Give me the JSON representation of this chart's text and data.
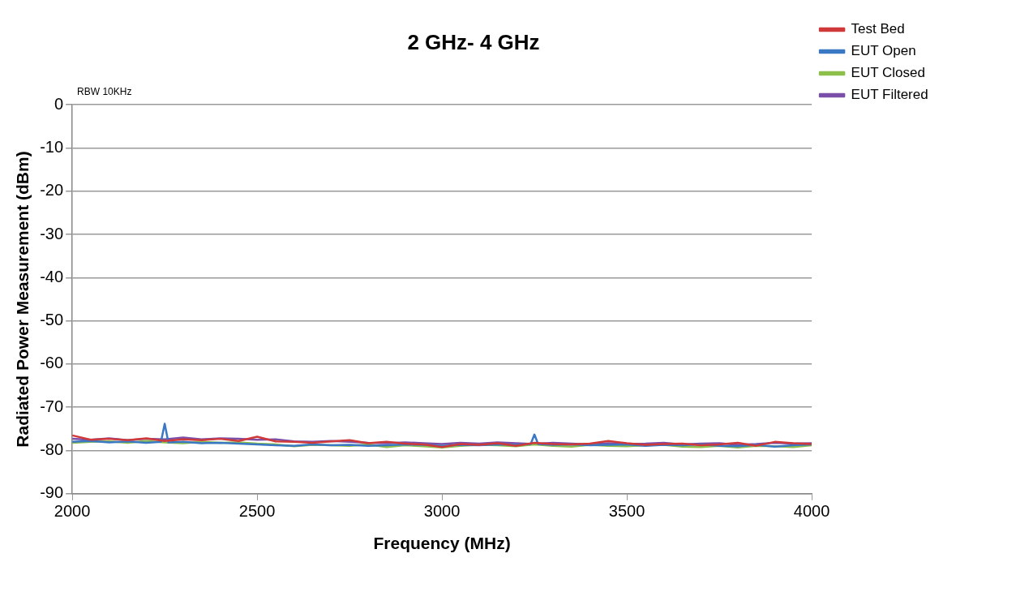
{
  "chart_data": {
    "type": "line",
    "title": "2 GHz- 4 GHz",
    "xlabel": "Frequency (MHz)",
    "ylabel": "Radiated Power Measurement (dBm)",
    "annotations": [
      "RBW 10KHz"
    ],
    "x": [
      2000,
      2050,
      2100,
      2150,
      2200,
      2250,
      2300,
      2350,
      2400,
      2450,
      2500,
      2550,
      2600,
      2650,
      2700,
      2750,
      2800,
      2850,
      2900,
      2950,
      3000,
      3050,
      3100,
      3150,
      3200,
      3250,
      3300,
      3350,
      3400,
      3450,
      3500,
      3550,
      3600,
      3650,
      3700,
      3750,
      3800,
      3850,
      3900,
      3950,
      4000
    ],
    "series": [
      {
        "name": "Test Bed",
        "color": "#d0393a",
        "values": [
          -76.5,
          -77.5,
          -77.3,
          -77.6,
          -77.2,
          -77.8,
          -77.4,
          -77.6,
          -77.3,
          -77.8,
          -76.8,
          -77.9,
          -78.0,
          -78.2,
          -77.9,
          -77.6,
          -78.3,
          -78.0,
          -78.4,
          -78.6,
          -79.2,
          -78.5,
          -78.7,
          -78.3,
          -78.9,
          -78.2,
          -78.5,
          -78.6,
          -78.4,
          -77.8,
          -78.3,
          -78.7,
          -78.5,
          -78.4,
          -78.8,
          -78.6,
          -78.2,
          -78.9,
          -78.0,
          -78.3,
          -78.5
        ]
      },
      {
        "name": "EUT Open",
        "color": "#3a78c3",
        "x": [
          2000,
          2050,
          2100,
          2150,
          2200,
          2240,
          2250,
          2260,
          2300,
          2350,
          2400,
          2450,
          2500,
          2550,
          2600,
          2650,
          2700,
          2750,
          2800,
          2850,
          2900,
          2950,
          3000,
          3050,
          3100,
          3150,
          3200,
          3240,
          3250,
          3260,
          3300,
          3350,
          3400,
          3450,
          3500,
          3550,
          3600,
          3650,
          3700,
          3750,
          3800,
          3850,
          3900,
          3950,
          4000
        ],
        "values": [
          -78.0,
          -77.8,
          -78.1,
          -77.9,
          -78.2,
          -78.0,
          -73.8,
          -78.1,
          -78.0,
          -78.3,
          -78.2,
          -78.4,
          -78.6,
          -78.8,
          -78.9,
          -78.6,
          -78.8,
          -78.7,
          -78.9,
          -78.8,
          -78.6,
          -78.7,
          -78.9,
          -78.7,
          -78.8,
          -78.6,
          -78.7,
          -78.5,
          -76.3,
          -78.5,
          -78.7,
          -78.6,
          -78.8,
          -78.7,
          -78.6,
          -78.9,
          -78.7,
          -78.8,
          -78.6,
          -78.9,
          -79.0,
          -78.7,
          -79.1,
          -78.8,
          -78.6
        ]
      },
      {
        "name": "EUT Closed",
        "color": "#8dc04a",
        "values": [
          -78.2,
          -78.0,
          -77.9,
          -78.2,
          -77.8,
          -78.1,
          -78.3,
          -78.0,
          -78.2,
          -78.1,
          -78.4,
          -78.6,
          -79.0,
          -78.7,
          -78.8,
          -78.9,
          -78.6,
          -79.2,
          -78.8,
          -79.0,
          -79.3,
          -78.9,
          -78.7,
          -78.8,
          -79.0,
          -78.6,
          -78.9,
          -79.1,
          -78.7,
          -78.9,
          -79.0,
          -78.8,
          -78.7,
          -79.1,
          -79.2,
          -78.9,
          -79.3,
          -78.9,
          -79.0,
          -79.2,
          -78.8
        ]
      },
      {
        "name": "EUT Filtered",
        "color": "#7b4fa8",
        "values": [
          -77.3,
          -77.5,
          -77.2,
          -77.6,
          -77.3,
          -77.4,
          -77.0,
          -77.4,
          -77.2,
          -77.3,
          -77.5,
          -77.4,
          -77.9,
          -78.0,
          -77.8,
          -78.0,
          -78.2,
          -78.3,
          -78.1,
          -78.3,
          -78.5,
          -78.2,
          -78.4,
          -78.1,
          -78.3,
          -78.5,
          -78.2,
          -78.4,
          -78.6,
          -78.3,
          -78.5,
          -78.4,
          -78.2,
          -78.6,
          -78.4,
          -78.3,
          -78.7,
          -78.5,
          -78.2,
          -78.4,
          -78.3
        ]
      }
    ],
    "xlim": [
      2000,
      4000
    ],
    "xticks": [
      2000,
      2500,
      3000,
      3500,
      4000
    ],
    "ylim": [
      -90,
      0
    ],
    "yticks": [
      0,
      -10,
      -20,
      -30,
      -40,
      -50,
      -60,
      -70,
      -80,
      -90
    ],
    "grid": "y",
    "legend": "top right",
    "marker": "none",
    "line_style": "solid"
  }
}
